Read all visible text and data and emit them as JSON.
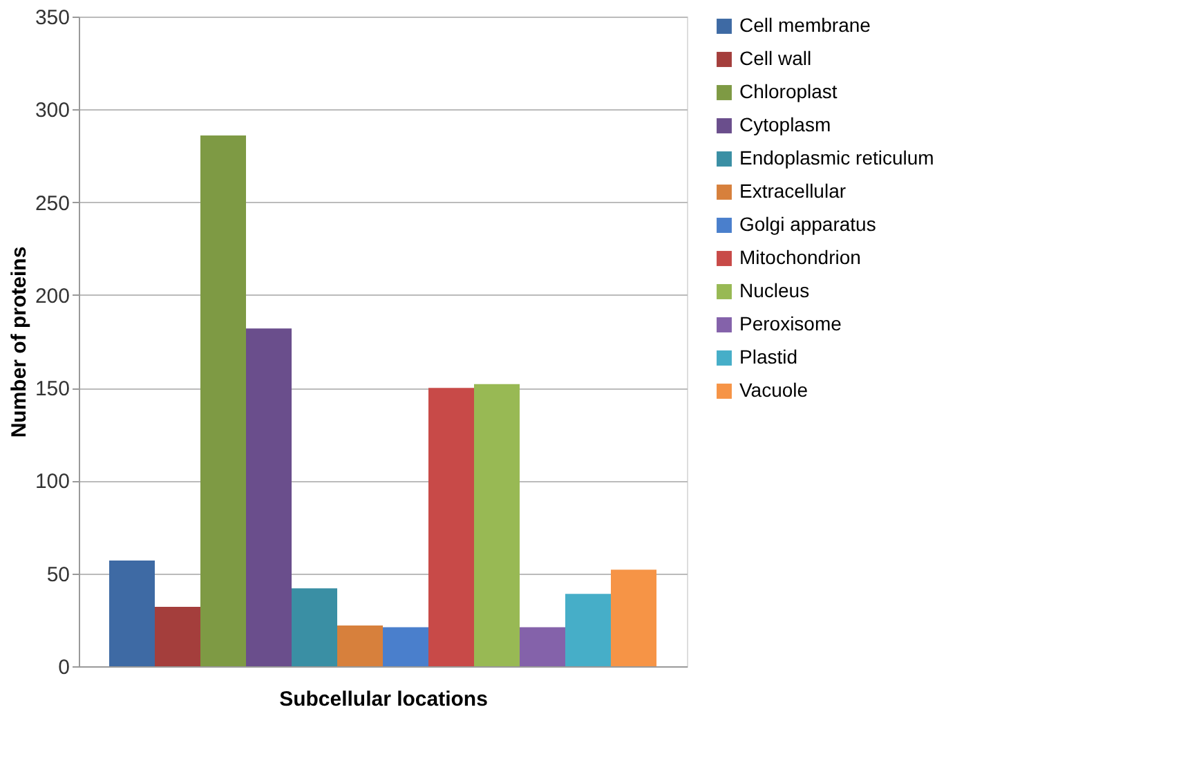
{
  "chart_data": {
    "type": "bar",
    "xlabel": "Subcellular locations",
    "ylabel": "Number of proteins",
    "categories": [
      null
    ],
    "series": [
      {
        "name": "Cell membrane",
        "color": "#3e6aa4",
        "values": [
          57
        ]
      },
      {
        "name": "Cell wall",
        "color": "#a43e3c",
        "values": [
          32
        ]
      },
      {
        "name": "Chloroplast",
        "color": "#7e9a44",
        "values": [
          286
        ]
      },
      {
        "name": "Cytoplasm",
        "color": "#6a4e8c",
        "values": [
          182
        ]
      },
      {
        "name": "Endoplasmic reticulum",
        "color": "#3a8fa4",
        "values": [
          42
        ]
      },
      {
        "name": "Extracellular",
        "color": "#d7803c",
        "values": [
          22
        ]
      },
      {
        "name": "Golgi apparatus",
        "color": "#4a7fcc",
        "values": [
          21
        ]
      },
      {
        "name": "Mitochondrion",
        "color": "#c84a48",
        "values": [
          150
        ]
      },
      {
        "name": "Nucleus",
        "color": "#98b954",
        "values": [
          152
        ]
      },
      {
        "name": "Peroxisome",
        "color": "#8462aa",
        "values": [
          21
        ]
      },
      {
        "name": "Plastid",
        "color": "#46aec8",
        "values": [
          39
        ]
      },
      {
        "name": "Vacuole",
        "color": "#f69446",
        "values": [
          52
        ]
      }
    ],
    "ylim": [
      0,
      350
    ],
    "yticks": [
      0,
      50,
      100,
      150,
      200,
      250,
      300,
      350
    ],
    "grid": "y",
    "legend": "right"
  }
}
